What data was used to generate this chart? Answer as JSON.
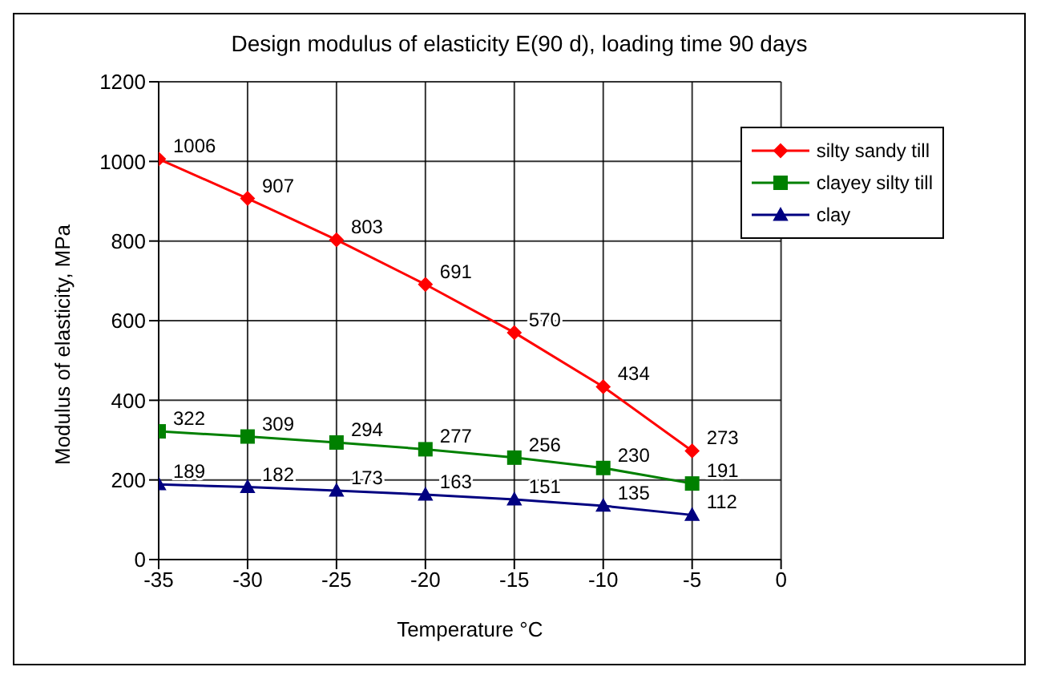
{
  "chart_data": {
    "type": "line",
    "title": "Design modulus of elasticity E(90 d), loading time 90 days",
    "xlabel": "Temperature °C",
    "ylabel": "Modulus of elasticity, MPa",
    "x": [
      -35,
      -30,
      -25,
      -20,
      -15,
      -10,
      -5
    ],
    "series": [
      {
        "name": "silty sandy till",
        "color": "#ff0000",
        "marker": "diamond",
        "values": [
          1006,
          907,
          803,
          691,
          570,
          434,
          273
        ]
      },
      {
        "name": "clayey silty till",
        "color": "#008000",
        "marker": "square",
        "values": [
          322,
          309,
          294,
          277,
          256,
          230,
          191
        ]
      },
      {
        "name": "clay",
        "color": "#000080",
        "marker": "triangle",
        "values": [
          189,
          182,
          173,
          163,
          151,
          135,
          112
        ]
      }
    ],
    "xlim": [
      -35,
      0
    ],
    "xticks": [
      -35,
      -30,
      -25,
      -20,
      -15,
      -10,
      -5,
      0
    ],
    "ylim": [
      0,
      1200
    ],
    "yticks": [
      0,
      200,
      400,
      600,
      800,
      1000,
      1200
    ],
    "grid": true,
    "legend": "top right",
    "data_labels": true,
    "line_style": "solid"
  }
}
